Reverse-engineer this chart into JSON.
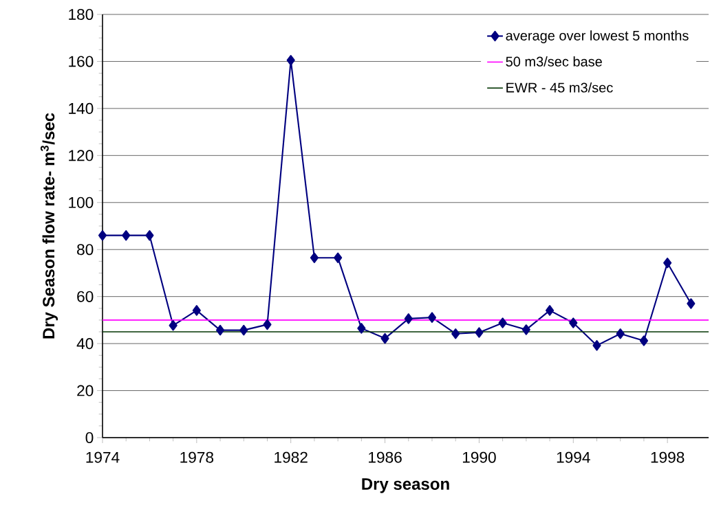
{
  "chart_data": {
    "type": "line",
    "xlabel": "Dry season",
    "ylabel": "Dry Season flow rate- m$^{3}$/sec",
    "x": [
      1974,
      1975,
      1976,
      1977,
      1978,
      1979,
      1980,
      1981,
      1982,
      1983,
      1984,
      1985,
      1986,
      1987,
      1988,
      1989,
      1990,
      1991,
      1992,
      1993,
      1994,
      1995,
      1996,
      1997,
      1998,
      1999
    ],
    "series": [
      {
        "name": "average over lowest 5 months",
        "color": "#000080",
        "marker": "diamond",
        "values": [
          86,
          86,
          86,
          47.7,
          54.1,
          45.7,
          45.7,
          48.1,
          160.5,
          76.5,
          76.5,
          46.5,
          42.2,
          50.6,
          51.1,
          44.2,
          44.7,
          48.8,
          45.9,
          54.1,
          48.8,
          39.2,
          44.2,
          41.2,
          74.3,
          57.0
        ]
      }
    ],
    "ref_lines": [
      {
        "axis": "y",
        "value": 50,
        "label": "50 m3/sec base",
        "color": "#ff00ff"
      },
      {
        "axis": "y",
        "value": 45,
        "label": "EWR - 45 m3/sec",
        "color": "#003300"
      }
    ],
    "xlim": [
      1974,
      1999.75
    ],
    "xticks": [
      1974,
      1978,
      1982,
      1986,
      1990,
      1994,
      1998
    ],
    "ylim": [
      0,
      180
    ],
    "yticks": [
      0,
      20,
      40,
      60,
      80,
      100,
      120,
      140,
      160,
      180
    ],
    "grid": "y",
    "legend": "top right"
  }
}
